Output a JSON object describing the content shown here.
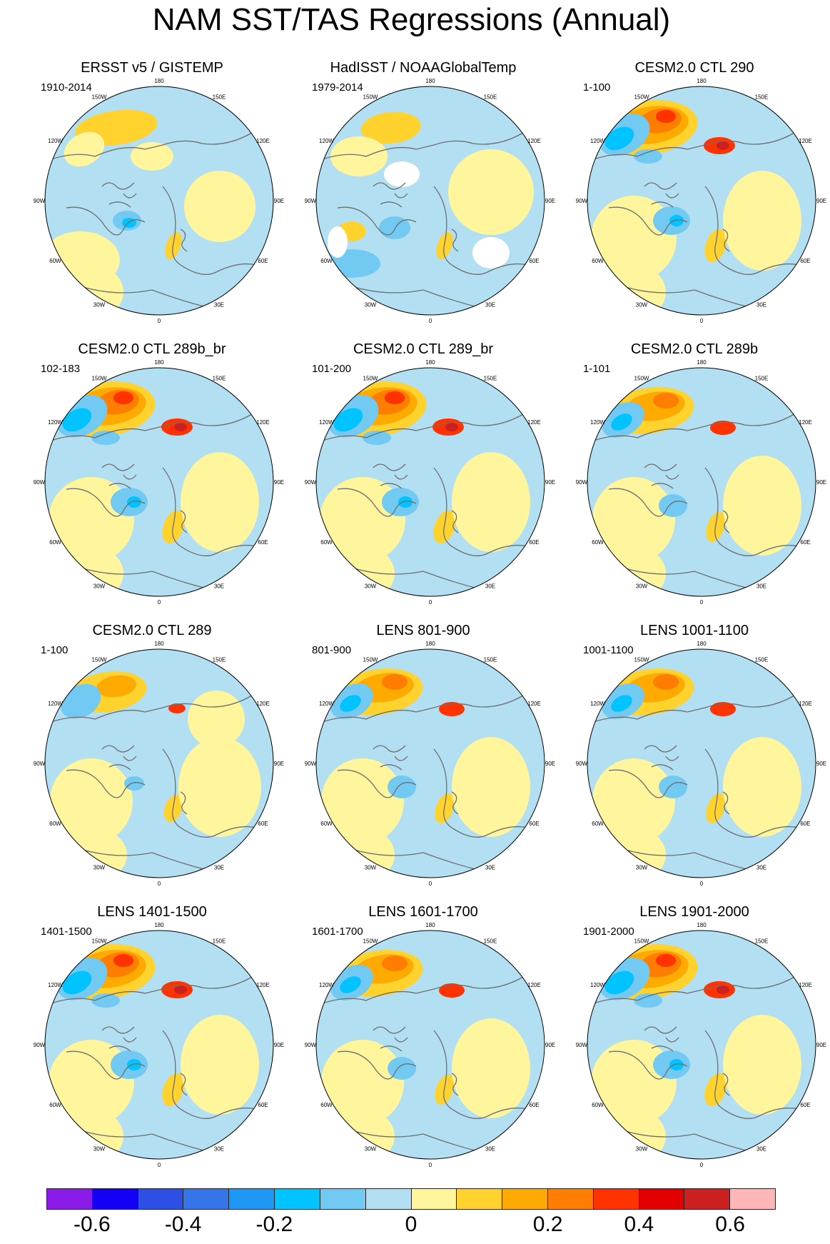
{
  "title": "NAM SST/TAS Regressions (Annual)",
  "meridian_labels": [
    "180",
    "150E",
    "120E",
    "90E",
    "60E",
    "30E",
    "0",
    "30W",
    "60W",
    "90W",
    "120W",
    "150W"
  ],
  "panels": [
    {
      "title": "ERSST v5 / GISTEMP",
      "years": "1910-2014",
      "pattern": "obs1"
    },
    {
      "title": "HadISST / NOAAGlobalTemp",
      "years": "1979-2014",
      "pattern": "obs2"
    },
    {
      "title": "CESM2.0 CTL 290",
      "years": "1-100",
      "pattern": "strong"
    },
    {
      "title": "CESM2.0 CTL 289b_br",
      "years": "102-183",
      "pattern": "strong"
    },
    {
      "title": "CESM2.0 CTL 289_br",
      "years": "101-200",
      "pattern": "strong"
    },
    {
      "title": "CESM2.0 CTL 289b",
      "years": "1-101",
      "pattern": "medium"
    },
    {
      "title": "CESM2.0 CTL 289",
      "years": "1-100",
      "pattern": "weak"
    },
    {
      "title": "LENS 801-900",
      "years": "801-900",
      "pattern": "medium"
    },
    {
      "title": "LENS 1001-1100",
      "years": "1001-1100",
      "pattern": "medium"
    },
    {
      "title": "LENS 1401-1500",
      "years": "1401-1500",
      "pattern": "strong"
    },
    {
      "title": "LENS 1601-1700",
      "years": "1601-1700",
      "pattern": "medium"
    },
    {
      "title": "LENS 1901-2000",
      "years": "1901-2000",
      "pattern": "strong"
    }
  ],
  "colorbar": {
    "colors": [
      "#8a1be8",
      "#1400f5",
      "#2e4fe6",
      "#3575e8",
      "#1e97f5",
      "#00c3ff",
      "#72caf2",
      "#b3dff3",
      "#fff59d",
      "#ffd22e",
      "#ffaa00",
      "#ff7d00",
      "#ff3200",
      "#e50000",
      "#cc1f1f",
      "#ffb6b6"
    ],
    "labels": [
      "-0.6",
      "-0.4",
      "-0.2",
      "0",
      "0.2",
      "0.4",
      "0.6"
    ],
    "label_boundaries": [
      1,
      3,
      5,
      8,
      11,
      13,
      15
    ]
  }
}
